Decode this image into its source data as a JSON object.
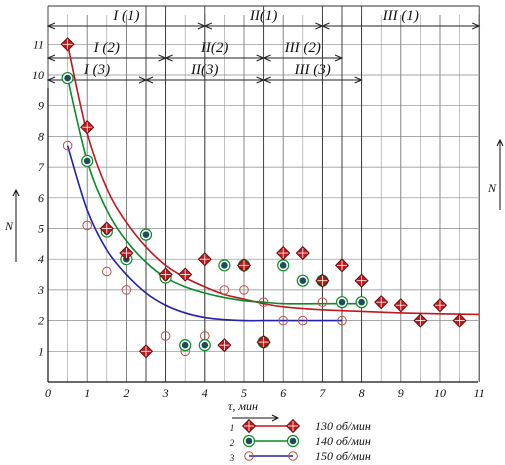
{
  "chart_data": {
    "type": "scatter",
    "xlabel": "τ, мин",
    "ylabel": "N",
    "ylabel_right": "N",
    "xlim": [
      0,
      11
    ],
    "ylim": [
      0,
      11
    ],
    "x_ticks": [
      "0",
      "1",
      "2",
      "3",
      "4",
      "5",
      "6",
      "7",
      "8",
      "9",
      "10",
      "11"
    ],
    "y_ticks": [
      "1",
      "2",
      "3",
      "4",
      "5",
      "6",
      "7",
      "8",
      "9",
      "10",
      "11"
    ],
    "grid": true,
    "phase_intervals": [
      {
        "label": "I (1)",
        "start": 0,
        "end": 4
      },
      {
        "label": "II(1)",
        "start": 4,
        "end": 7
      },
      {
        "label": "III (1)",
        "start": 7,
        "end": 11
      },
      {
        "label": "I (2)",
        "start": 0,
        "end": 3
      },
      {
        "label": "II(2)",
        "start": 3,
        "end": 5.5
      },
      {
        "label": "III (2)",
        "start": 5.5,
        "end": 7.5
      },
      {
        "label": "I (3)",
        "start": 0,
        "end": 2.5
      },
      {
        "label": "II(3)",
        "start": 2.5,
        "end": 5.5
      },
      {
        "label": "III (3)",
        "start": 5.5,
        "end": 8
      }
    ],
    "series": [
      {
        "name": "130 об/мин",
        "number": "1",
        "color": "#c0181d",
        "marker": "diamond",
        "points": [
          [
            0.5,
            11
          ],
          [
            1,
            8.3
          ],
          [
            1.5,
            5
          ],
          [
            2,
            4.2
          ],
          [
            2.5,
            1
          ],
          [
            3,
            3.5
          ],
          [
            3.5,
            3.5
          ],
          [
            4,
            4
          ],
          [
            4.5,
            1.2
          ],
          [
            5,
            3.8
          ],
          [
            5.5,
            1.3
          ],
          [
            6,
            4.2
          ],
          [
            6.5,
            4.2
          ],
          [
            7,
            3.3
          ],
          [
            7.5,
            3.8
          ],
          [
            8,
            3.3
          ],
          [
            8.5,
            2.6
          ],
          [
            9,
            2.5
          ],
          [
            9.5,
            2
          ],
          [
            10,
            2.5
          ],
          [
            10.5,
            2
          ]
        ],
        "curve": [
          [
            0.5,
            11
          ],
          [
            1,
            8.1
          ],
          [
            1.5,
            6.3
          ],
          [
            2,
            5.2
          ],
          [
            2.5,
            4.4
          ],
          [
            3,
            3.8
          ],
          [
            3.5,
            3.4
          ],
          [
            4,
            3.1
          ],
          [
            4.5,
            2.85
          ],
          [
            5,
            2.7
          ],
          [
            5.5,
            2.55
          ],
          [
            6,
            2.45
          ],
          [
            7,
            2.35
          ],
          [
            8,
            2.3
          ],
          [
            9,
            2.25
          ],
          [
            10,
            2.22
          ],
          [
            11,
            2.2
          ]
        ]
      },
      {
        "name": "140 об/мин",
        "number": "2",
        "color": "#0a8a2a",
        "marker": "dot-circle",
        "points": [
          [
            0.5,
            9.9
          ],
          [
            1,
            7.2
          ],
          [
            1.5,
            4.9
          ],
          [
            2,
            4
          ],
          [
            2.5,
            4.8
          ],
          [
            3,
            3.4
          ],
          [
            3.5,
            1.2
          ],
          [
            4,
            1.2
          ],
          [
            4.5,
            3.8
          ],
          [
            5,
            3.8
          ],
          [
            5.5,
            1.3
          ],
          [
            6,
            3.8
          ],
          [
            6.5,
            3.3
          ],
          [
            7,
            3.3
          ],
          [
            7.5,
            2.6
          ],
          [
            8,
            2.6
          ]
        ],
        "curve": [
          [
            0.5,
            9.9
          ],
          [
            1,
            7.2
          ],
          [
            1.5,
            5.6
          ],
          [
            2,
            4.6
          ],
          [
            2.5,
            3.9
          ],
          [
            3,
            3.4
          ],
          [
            3.5,
            3.1
          ],
          [
            4,
            2.9
          ],
          [
            4.5,
            2.75
          ],
          [
            5,
            2.65
          ],
          [
            5.5,
            2.6
          ],
          [
            6,
            2.55
          ],
          [
            7,
            2.55
          ],
          [
            8,
            2.55
          ]
        ]
      },
      {
        "name": "150 об/мин",
        "number": "3",
        "color": "#2222aa",
        "marker": "open-circle",
        "points": [
          [
            0.5,
            7.7
          ],
          [
            1,
            5.1
          ],
          [
            1.5,
            3.6
          ],
          [
            2,
            3
          ],
          [
            3,
            1.5
          ],
          [
            3.5,
            1
          ],
          [
            4,
            1.5
          ],
          [
            4.5,
            3
          ],
          [
            5,
            3
          ],
          [
            5.5,
            2.6
          ],
          [
            6,
            2
          ],
          [
            6.5,
            2
          ],
          [
            7,
            2.6
          ],
          [
            7.5,
            2
          ]
        ],
        "curve": [
          [
            0.5,
            7.7
          ],
          [
            1,
            5.6
          ],
          [
            1.5,
            4.3
          ],
          [
            2,
            3.5
          ],
          [
            2.5,
            2.9
          ],
          [
            3,
            2.5
          ],
          [
            3.5,
            2.25
          ],
          [
            4,
            2.1
          ],
          [
            4.5,
            2.03
          ],
          [
            5,
            2
          ],
          [
            5.5,
            2
          ],
          [
            6,
            2
          ],
          [
            7,
            2
          ],
          [
            7.5,
            2
          ]
        ]
      }
    ]
  }
}
